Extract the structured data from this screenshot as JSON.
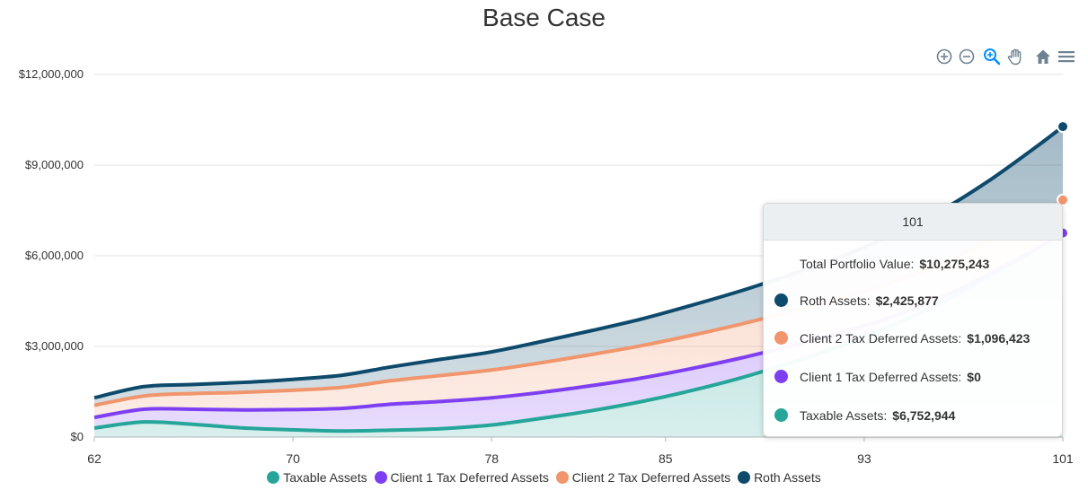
{
  "chart_data": {
    "type": "area",
    "title": "Base Case",
    "xlabel": "",
    "ylabel": "",
    "x": [
      62,
      64,
      66,
      68,
      70,
      72,
      74,
      76,
      78,
      80,
      82,
      84,
      86,
      88,
      90,
      92,
      94,
      96,
      98,
      100,
      101
    ],
    "xlim": [
      62,
      101
    ],
    "x_ticks": [
      "62",
      "70",
      "78",
      "85",
      "93",
      "101"
    ],
    "x_tick_values": [
      62,
      70,
      78,
      85,
      93,
      101
    ],
    "ylim": [
      0,
      12000000
    ],
    "y_ticks": [
      "$0",
      "$3,000,000",
      "$6,000,000",
      "$9,000,000",
      "$12,000,000"
    ],
    "y_tick_values": [
      0,
      3000000,
      6000000,
      9000000,
      12000000
    ],
    "stacked": true,
    "grid": true,
    "legend_position": "bottom",
    "series": [
      {
        "name": "Taxable Assets",
        "color": "#26a69a",
        "values": [
          300000,
          500000,
          420000,
          300000,
          240000,
          200000,
          230000,
          280000,
          400000,
          620000,
          870000,
          1170000,
          1530000,
          1950000,
          2450000,
          3000000,
          3650000,
          4400000,
          5300000,
          6250000,
          6752944
        ]
      },
      {
        "name": "Client 1 Tax Deferred Assets",
        "color": "#7e3ff2",
        "values": [
          350000,
          420000,
          500000,
          600000,
          670000,
          750000,
          860000,
          900000,
          900000,
          860000,
          830000,
          780000,
          730000,
          660000,
          560000,
          440000,
          300000,
          180000,
          80000,
          20000,
          0
        ]
      },
      {
        "name": "Client 2 Tax Deferred Assets",
        "color": "#f0956c",
        "values": [
          400000,
          440000,
          520000,
          580000,
          640000,
          700000,
          780000,
          860000,
          920000,
          980000,
          1030000,
          1070000,
          1100000,
          1120000,
          1130000,
          1130000,
          1130000,
          1120000,
          1110000,
          1100000,
          1096423
        ]
      },
      {
        "name": "Roth Assets",
        "color": "#0d4a6b",
        "values": [
          250000,
          310000,
          300000,
          330000,
          360000,
          400000,
          460000,
          540000,
          600000,
          700000,
          790000,
          880000,
          990000,
          1100000,
          1230000,
          1380000,
          1560000,
          1750000,
          1980000,
          2280000,
          2425877
        ]
      }
    ],
    "tooltip": {
      "header": "101",
      "total_label": "Total Portfolio Value:",
      "total_value": "$10,275,243",
      "rows": [
        {
          "label": "Roth Assets:",
          "value": "$2,425,877",
          "color": "#0d4a6b"
        },
        {
          "label": "Client 2 Tax Deferred Assets:",
          "value": "$1,096,423",
          "color": "#f0956c"
        },
        {
          "label": "Client 1 Tax Deferred Assets:",
          "value": "$0",
          "color": "#7e3ff2"
        },
        {
          "label": "Taxable Assets:",
          "value": "$6,752,944",
          "color": "#26a69a"
        }
      ]
    }
  },
  "toolbar": {
    "icons": [
      "zoom-in-icon",
      "zoom-out-icon",
      "selection-zoom-icon",
      "pan-hand-icon",
      "home-reset-icon",
      "menu-icon"
    ],
    "active_color": "#008ffb",
    "inactive_color": "#6e8192"
  }
}
